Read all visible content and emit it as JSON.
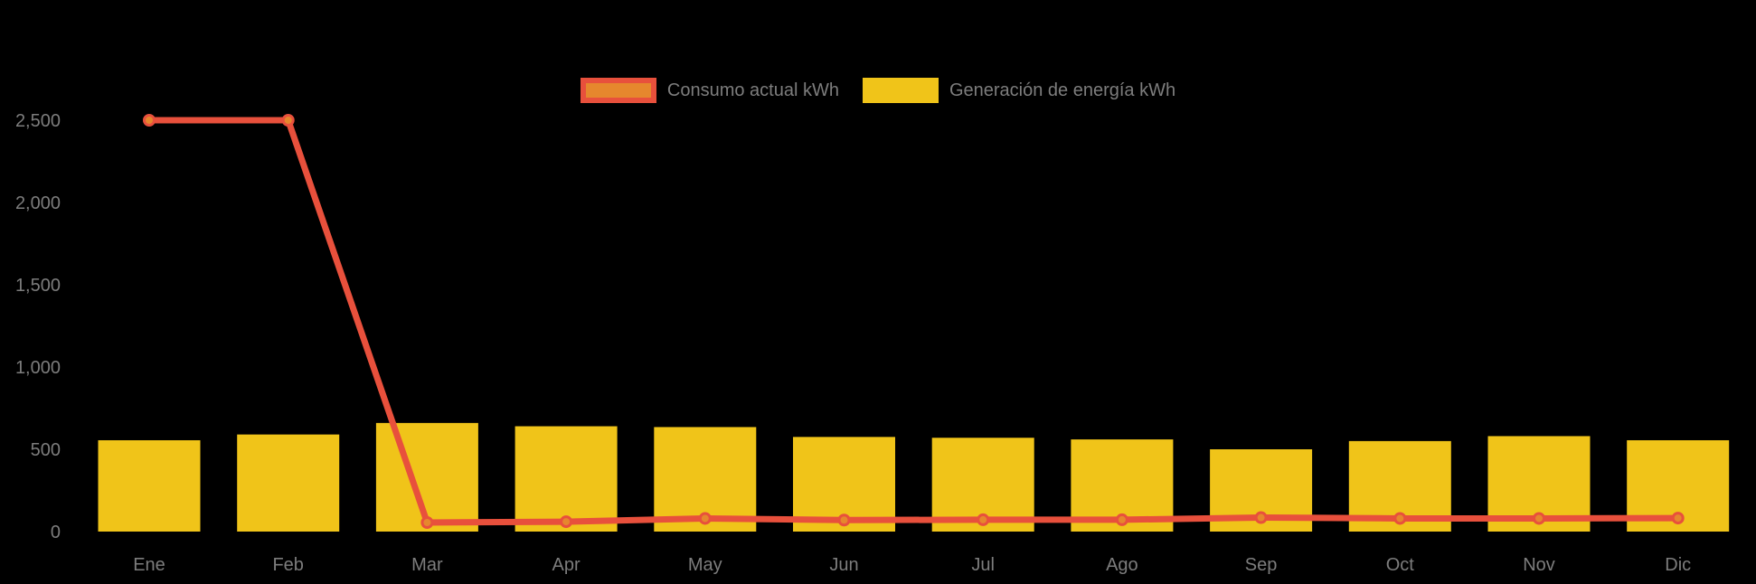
{
  "chart_data": {
    "type": "combo",
    "title": "",
    "xlabel": "",
    "ylabel": "",
    "categories": [
      "Ene",
      "Feb",
      "Mar",
      "Apr",
      "May",
      "Jun",
      "Jul",
      "Ago",
      "Sep",
      "Oct",
      "Nov",
      "Dic"
    ],
    "series": [
      {
        "name": "Consumo actual kWh",
        "type": "line",
        "values": [
          2500,
          2500,
          55,
          60,
          80,
          70,
          72,
          72,
          85,
          80,
          80,
          82
        ],
        "line_color": "#E8503C",
        "point_color": "#E6872D"
      },
      {
        "name": "Generación de energía kWh",
        "type": "bar",
        "values": [
          555,
          590,
          660,
          640,
          635,
          575,
          570,
          560,
          500,
          550,
          580,
          555
        ],
        "color": "#F0C419"
      }
    ],
    "yaxis": {
      "tick_labels": [
        "0",
        "500",
        "1,000",
        "1,500",
        "2,000",
        "2,500"
      ],
      "tick_values": [
        0,
        500,
        1000,
        1500,
        2000,
        2500
      ],
      "range": [
        0,
        2500
      ]
    },
    "legend_position": "top-center",
    "grid": false,
    "colors": {
      "background": "#000000",
      "text": "#7D7D7D"
    }
  }
}
